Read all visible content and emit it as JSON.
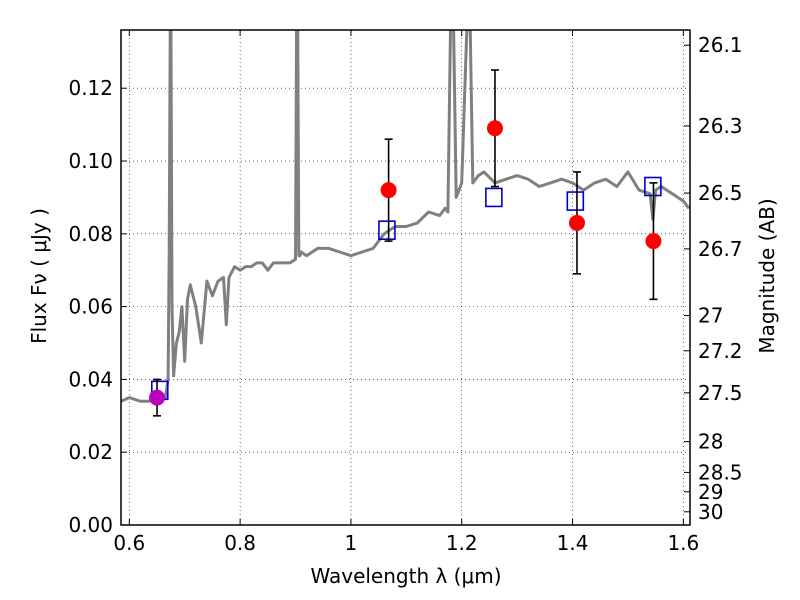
{
  "chart_data": {
    "type": "line",
    "title": "",
    "xlabel": "Wavelength  λ (μm)",
    "ylabel": "Flux  Fν  ( μJy )",
    "y2label": "Magnitude (AB)",
    "xlim": [
      0.585,
      1.612
    ],
    "ylim": [
      0.0,
      0.136
    ],
    "grid": true,
    "x_ticks": [
      "0.6",
      "0.8",
      "1",
      "1.2",
      "1.4",
      "1.6"
    ],
    "y_ticks": [
      "0.00",
      "0.02",
      "0.04",
      "0.06",
      "0.08",
      "0.10",
      "0.12"
    ],
    "y2_ticks": [
      "26.1",
      "26.3",
      "26.5",
      "26.7",
      "27",
      "27.2",
      "27.5",
      "28",
      "28.5",
      "29",
      "30"
    ],
    "colors": {
      "spectrum": "#808080",
      "model_markers": "#0000cc",
      "detections": "#ff0000",
      "optical_point": "#bf00bf",
      "errorbars": "#000000"
    },
    "series": [
      {
        "kind": "spectrum",
        "x": [
          0.585,
          0.6,
          0.62,
          0.635,
          0.65,
          0.665,
          0.67,
          0.672,
          0.674,
          0.675,
          0.677,
          0.68,
          0.685,
          0.69,
          0.695,
          0.7,
          0.705,
          0.71,
          0.715,
          0.72,
          0.73,
          0.74,
          0.75,
          0.76,
          0.77,
          0.775,
          0.78,
          0.79,
          0.8,
          0.81,
          0.82,
          0.83,
          0.84,
          0.85,
          0.86,
          0.87,
          0.88,
          0.89,
          0.9,
          0.902,
          0.904,
          0.906,
          0.908,
          0.91,
          0.92,
          0.94,
          0.96,
          0.98,
          1.0,
          1.02,
          1.04,
          1.06,
          1.08,
          1.1,
          1.12,
          1.14,
          1.16,
          1.17,
          1.175,
          1.18,
          1.185,
          1.19,
          1.2,
          1.21,
          1.215,
          1.22,
          1.23,
          1.24,
          1.26,
          1.28,
          1.3,
          1.32,
          1.34,
          1.36,
          1.38,
          1.4,
          1.42,
          1.44,
          1.46,
          1.48,
          1.5,
          1.52,
          1.54,
          1.545,
          1.55,
          1.56,
          1.58,
          1.6,
          1.61
        ],
        "y": [
          0.034,
          0.035,
          0.034,
          0.034,
          0.035,
          0.035,
          0.04,
          0.075,
          0.14,
          0.14,
          0.06,
          0.041,
          0.05,
          0.053,
          0.06,
          0.045,
          0.062,
          0.066,
          0.063,
          0.06,
          0.05,
          0.067,
          0.063,
          0.067,
          0.068,
          0.055,
          0.068,
          0.071,
          0.07,
          0.071,
          0.071,
          0.072,
          0.072,
          0.07,
          0.072,
          0.072,
          0.072,
          0.072,
          0.073,
          0.14,
          0.14,
          0.074,
          0.074,
          0.075,
          0.074,
          0.076,
          0.076,
          0.075,
          0.074,
          0.075,
          0.076,
          0.08,
          0.082,
          0.082,
          0.083,
          0.086,
          0.085,
          0.087,
          0.086,
          0.14,
          0.14,
          0.09,
          0.094,
          0.14,
          0.14,
          0.094,
          0.096,
          0.097,
          0.094,
          0.095,
          0.096,
          0.095,
          0.093,
          0.094,
          0.095,
          0.094,
          0.092,
          0.094,
          0.095,
          0.093,
          0.097,
          0.092,
          0.091,
          0.084,
          0.092,
          0.093,
          0.091,
          0.089,
          0.087
        ]
      },
      {
        "kind": "model_photometry",
        "x": [
          0.655,
          1.065,
          1.258,
          1.405,
          1.545
        ],
        "y": [
          0.037,
          0.081,
          0.09,
          0.089,
          0.093
        ]
      },
      {
        "kind": "detections",
        "x": [
          1.068,
          1.26,
          1.408,
          1.546
        ],
        "y": [
          0.092,
          0.109,
          0.083,
          0.078
        ],
        "yerr": [
          0.014,
          0.016,
          0.014,
          0.016
        ]
      },
      {
        "kind": "optical_point",
        "x": [
          0.65
        ],
        "y": [
          0.035
        ],
        "yerr": [
          0.005
        ]
      }
    ]
  }
}
